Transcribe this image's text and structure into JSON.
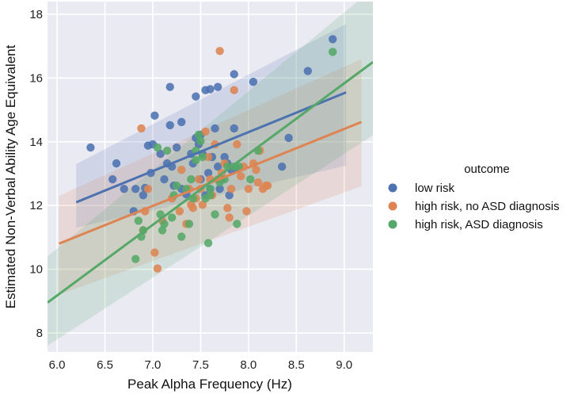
{
  "chart_data": {
    "type": "scatter",
    "title": "",
    "xlabel": "Peak Alpha Frequency (Hz)",
    "ylabel": "Estimated Non-Verbal Ability Age Equivalent",
    "xlim": [
      5.9,
      9.3
    ],
    "ylim": [
      7.4,
      18.4
    ],
    "xticks": [
      6.0,
      6.5,
      7.0,
      7.5,
      8.0,
      8.5,
      9.0
    ],
    "xtick_labels": [
      "6.0",
      "6.5",
      "7.0",
      "7.5",
      "8.0",
      "8.5",
      "9.0"
    ],
    "yticks": [
      8,
      10,
      12,
      14,
      16,
      18
    ],
    "ytick_labels": [
      "8",
      "10",
      "12",
      "14",
      "16",
      "18"
    ],
    "grid": true,
    "legend": {
      "title": "outcome",
      "placement": "right"
    },
    "series": [
      {
        "name": "low risk",
        "color": "#4c72b0",
        "points": [
          [
            6.35,
            13.82
          ],
          [
            6.58,
            12.82
          ],
          [
            6.62,
            13.32
          ],
          [
            6.7,
            12.52
          ],
          [
            6.8,
            11.82
          ],
          [
            6.82,
            12.52
          ],
          [
            6.9,
            12.32
          ],
          [
            6.92,
            12.55
          ],
          [
            6.95,
            13.88
          ],
          [
            7.0,
            13.92
          ],
          [
            7.02,
            14.82
          ],
          [
            7.08,
            13.62
          ],
          [
            7.12,
            12.82
          ],
          [
            7.15,
            13.32
          ],
          [
            7.18,
            14.52
          ],
          [
            7.2,
            13.22
          ],
          [
            7.22,
            12.62
          ],
          [
            7.25,
            13.82
          ],
          [
            7.3,
            12.52
          ],
          [
            7.35,
            12.35
          ],
          [
            7.4,
            13.62
          ],
          [
            7.42,
            13.32
          ],
          [
            7.45,
            14.12
          ],
          [
            7.48,
            13.92
          ],
          [
            7.5,
            12.82
          ],
          [
            7.52,
            13.62
          ],
          [
            7.55,
            12.32
          ],
          [
            7.58,
            13.02
          ],
          [
            7.6,
            12.52
          ],
          [
            7.62,
            13.52
          ],
          [
            7.65,
            14.42
          ],
          [
            7.68,
            13.22
          ],
          [
            7.7,
            12.52
          ],
          [
            7.72,
            12.82
          ],
          [
            7.75,
            13.52
          ],
          [
            7.78,
            13.32
          ],
          [
            7.8,
            12.32
          ],
          [
            7.82,
            13.12
          ],
          [
            7.85,
            14.42
          ],
          [
            7.88,
            13.15
          ],
          [
            7.18,
            15.72
          ],
          [
            7.45,
            15.42
          ],
          [
            7.55,
            15.62
          ],
          [
            7.6,
            15.65
          ],
          [
            7.68,
            15.72
          ],
          [
            7.85,
            16.12
          ],
          [
            8.05,
            15.88
          ],
          [
            8.62,
            16.22
          ],
          [
            8.88,
            17.22
          ],
          [
            8.35,
            13.22
          ],
          [
            8.42,
            14.12
          ],
          [
            7.3,
            14.62
          ],
          [
            6.98,
            13.02
          ],
          [
            7.5,
            14.22
          ]
        ]
      },
      {
        "name": "high risk, no ASD diagnosis",
        "color": "#dd8452",
        "points": [
          [
            6.88,
            14.42
          ],
          [
            6.9,
            11.22
          ],
          [
            6.92,
            11.82
          ],
          [
            6.95,
            12.52
          ],
          [
            7.02,
            10.52
          ],
          [
            7.05,
            10.02
          ],
          [
            7.1,
            11.52
          ],
          [
            7.2,
            12.22
          ],
          [
            7.28,
            11.82
          ],
          [
            7.35,
            11.42
          ],
          [
            7.38,
            12.52
          ],
          [
            7.42,
            11.92
          ],
          [
            7.45,
            12.22
          ],
          [
            7.48,
            12.82
          ],
          [
            7.5,
            12.52
          ],
          [
            7.52,
            12.02
          ],
          [
            7.55,
            14.32
          ],
          [
            7.58,
            13.52
          ],
          [
            7.6,
            12.82
          ],
          [
            7.62,
            12.32
          ],
          [
            7.65,
            13.92
          ],
          [
            7.68,
            12.82
          ],
          [
            7.7,
            16.85
          ],
          [
            7.72,
            13.02
          ],
          [
            7.75,
            13.32
          ],
          [
            7.78,
            11.92
          ],
          [
            7.8,
            11.62
          ],
          [
            7.82,
            12.52
          ],
          [
            7.85,
            15.62
          ],
          [
            7.88,
            13.92
          ],
          [
            7.92,
            12.92
          ],
          [
            7.95,
            13.22
          ],
          [
            7.98,
            11.82
          ],
          [
            8.0,
            12.52
          ],
          [
            8.05,
            13.32
          ],
          [
            8.08,
            13.12
          ],
          [
            8.1,
            12.72
          ],
          [
            8.12,
            13.72
          ],
          [
            8.15,
            12.52
          ],
          [
            8.18,
            12.62
          ],
          [
            8.2,
            12.62
          ],
          [
            7.3,
            13.12
          ],
          [
            7.4,
            12.02
          ]
        ]
      },
      {
        "name": "high risk, ASD diagnosis",
        "color": "#55a868",
        "points": [
          [
            6.82,
            10.32
          ],
          [
            6.85,
            11.52
          ],
          [
            6.88,
            11.02
          ],
          [
            6.9,
            11.22
          ],
          [
            7.05,
            13.82
          ],
          [
            7.08,
            11.72
          ],
          [
            7.1,
            11.22
          ],
          [
            7.12,
            11.42
          ],
          [
            7.15,
            13.72
          ],
          [
            7.2,
            11.62
          ],
          [
            7.22,
            12.32
          ],
          [
            7.25,
            12.62
          ],
          [
            7.3,
            11.02
          ],
          [
            7.35,
            12.52
          ],
          [
            7.38,
            11.42
          ],
          [
            7.4,
            12.82
          ],
          [
            7.42,
            12.22
          ],
          [
            7.45,
            13.42
          ],
          [
            7.48,
            14.22
          ],
          [
            7.5,
            14.02
          ],
          [
            7.52,
            13.52
          ],
          [
            7.55,
            12.22
          ],
          [
            7.58,
            10.82
          ],
          [
            7.6,
            12.52
          ],
          [
            7.65,
            11.72
          ],
          [
            7.7,
            12.72
          ],
          [
            7.75,
            12.82
          ],
          [
            7.78,
            13.22
          ],
          [
            7.85,
            13.22
          ],
          [
            7.88,
            11.42
          ],
          [
            7.9,
            13.22
          ],
          [
            8.02,
            12.82
          ],
          [
            8.1,
            13.72
          ],
          [
            8.88,
            16.82
          ],
          [
            7.45,
            13.72
          ],
          [
            7.6,
            12.32
          ]
        ]
      }
    ],
    "regression": [
      {
        "name": "low risk",
        "x": [
          6.2,
          9.02
        ],
        "y": [
          12.1,
          15.55
        ],
        "ci_low": [
          11.3,
          13.25
        ],
        "ci_high": [
          13.3,
          17.7
        ]
      },
      {
        "name": "high risk, no ASD diagnosis",
        "x": [
          6.02,
          9.18
        ],
        "y": [
          10.8,
          14.62
        ],
        "ci_low": [
          9.2,
          12.6
        ],
        "ci_high": [
          12.3,
          16.6
        ]
      },
      {
        "name": "high risk, ASD diagnosis",
        "x": [
          5.9,
          9.3
        ],
        "y": [
          8.95,
          16.5
        ],
        "ci_low": [
          7.6,
          14.2
        ],
        "ci_high": [
          10.4,
          18.8
        ]
      }
    ]
  }
}
